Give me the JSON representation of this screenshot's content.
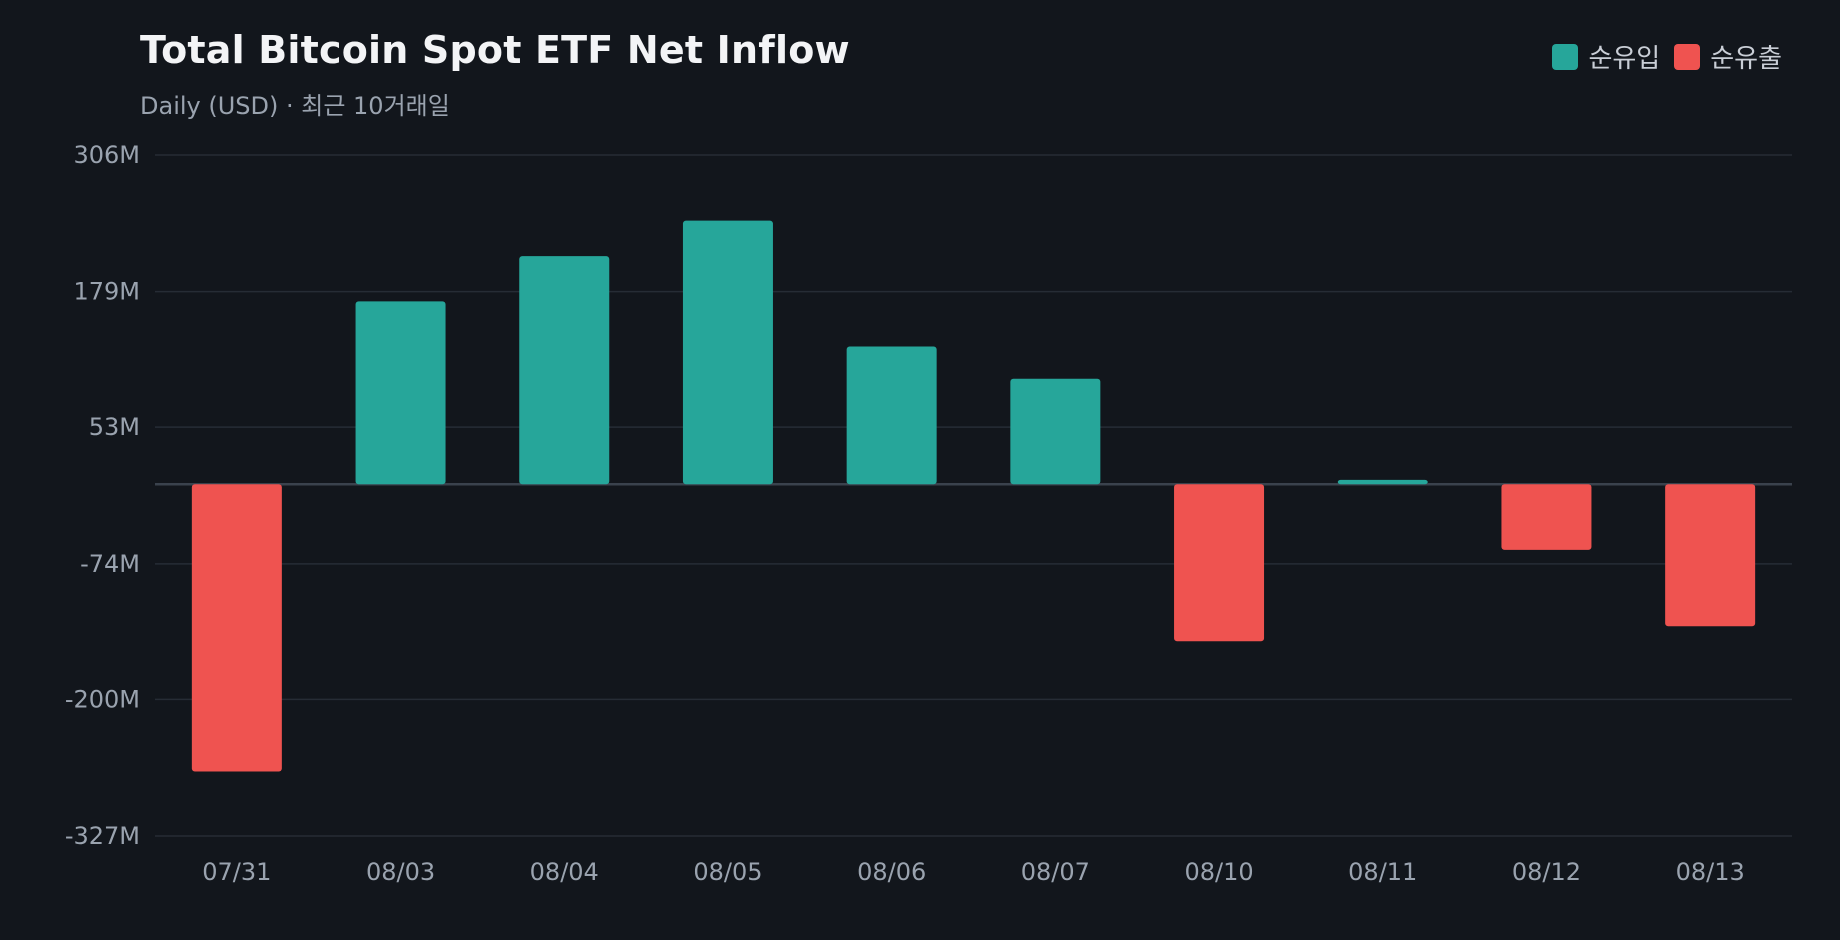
{
  "chart_data": {
    "type": "bar",
    "title": "Total Bitcoin Spot ETF Net Inflow",
    "subtitle": "Daily (USD) · 최근 10거래일",
    "legend": [
      {
        "label": "순유입",
        "color": "#26a69a"
      },
      {
        "label": "순유출",
        "color": "#ef5350"
      }
    ],
    "legend_position": "top-right",
    "categories": [
      "07/31",
      "08/03",
      "08/04",
      "08/05",
      "08/06",
      "08/07",
      "08/10",
      "08/11",
      "08/12",
      "08/13"
    ],
    "values": [
      -267,
      170,
      212,
      245,
      128,
      98,
      -146,
      4,
      -61,
      -132
    ],
    "unit": "USD (M)",
    "y_ticks": [
      "306M",
      "179M",
      "53M",
      "-74M",
      "-200M",
      "-327M"
    ],
    "y_tick_values": [
      306,
      179,
      53,
      -74,
      -200,
      -327
    ],
    "ylim": [
      -327,
      306
    ],
    "grid": true,
    "colors": {
      "positive": "#26a69a",
      "negative": "#ef5350",
      "grid": "#262c35",
      "zero_line": "#3a424d",
      "background": "#12161c"
    }
  }
}
